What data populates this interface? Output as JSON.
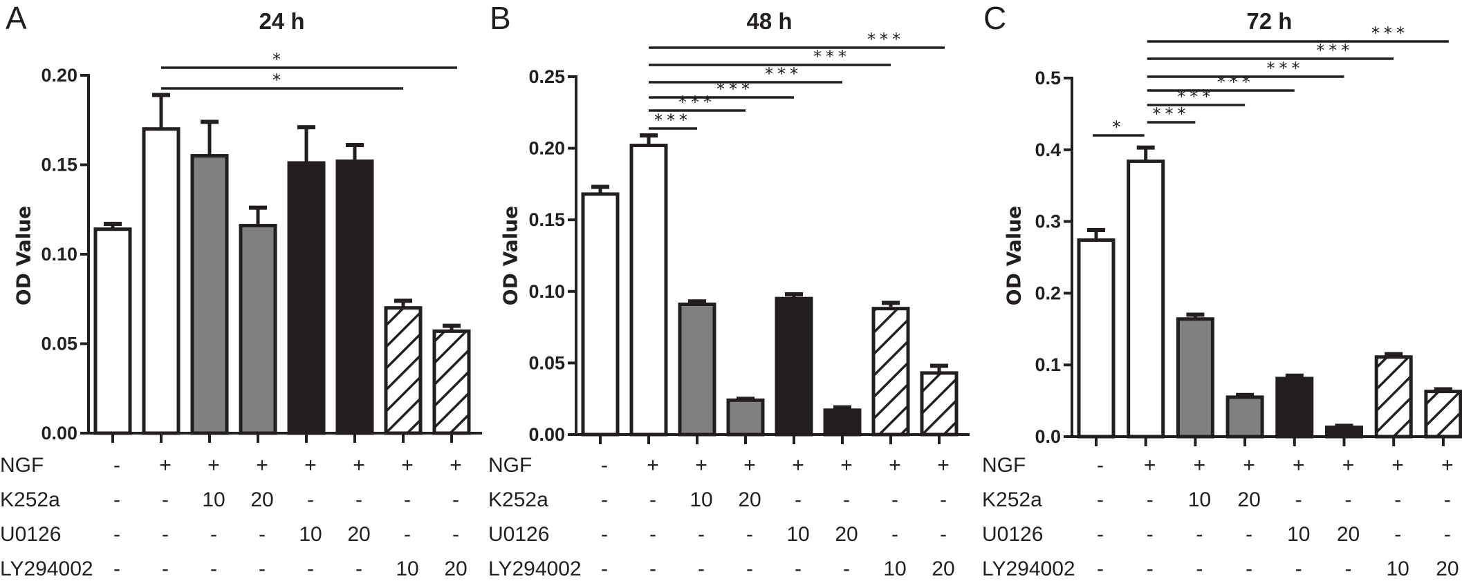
{
  "chart_data": [
    {
      "type": "bar",
      "panel_label": "A",
      "title": "24 h",
      "ylabel": "OD Value",
      "ylim": [
        0,
        0.2
      ],
      "yticks": [
        "0.00",
        "0.05",
        "0.10",
        "0.15",
        "0.20"
      ],
      "ytick_values": [
        0,
        0.05,
        0.1,
        0.15,
        0.2
      ],
      "values": [
        0.114,
        0.17,
        0.155,
        0.116,
        0.151,
        0.152,
        0.07,
        0.057
      ],
      "errors": [
        0.003,
        0.019,
        0.019,
        0.01,
        0.02,
        0.009,
        0.004,
        0.003
      ],
      "significance": [
        {
          "from": 1,
          "to": 6,
          "label": "*"
        },
        {
          "from": 1,
          "to": 7,
          "label": "*"
        }
      ]
    },
    {
      "type": "bar",
      "panel_label": "B",
      "title": "48 h",
      "ylabel": "OD Value",
      "ylim": [
        0,
        0.25
      ],
      "yticks": [
        "0.00",
        "0.05",
        "0.10",
        "0.15",
        "0.20",
        "0.25"
      ],
      "ytick_values": [
        0,
        0.05,
        0.1,
        0.15,
        0.2,
        0.25
      ],
      "values": [
        0.168,
        0.202,
        0.091,
        0.024,
        0.095,
        0.017,
        0.088,
        0.043
      ],
      "errors": [
        0.005,
        0.007,
        0.002,
        0.001,
        0.003,
        0.002,
        0.004,
        0.005
      ],
      "significance": [
        {
          "from": 1,
          "to": 2,
          "label": "***"
        },
        {
          "from": 1,
          "to": 3,
          "label": "***"
        },
        {
          "from": 1,
          "to": 4,
          "label": "***"
        },
        {
          "from": 1,
          "to": 5,
          "label": "***"
        },
        {
          "from": 1,
          "to": 6,
          "label": "***"
        },
        {
          "from": 1,
          "to": 7,
          "label": "***"
        }
      ]
    },
    {
      "type": "bar",
      "panel_label": "C",
      "title": "72 h",
      "ylabel": "OD Value",
      "ylim": [
        0,
        0.5
      ],
      "yticks": [
        "0.0",
        "0.1",
        "0.2",
        "0.3",
        "0.4",
        "0.5"
      ],
      "ytick_values": [
        0,
        0.1,
        0.2,
        0.3,
        0.4,
        0.5
      ],
      "values": [
        0.274,
        0.384,
        0.164,
        0.055,
        0.081,
        0.013,
        0.111,
        0.063
      ],
      "errors": [
        0.014,
        0.019,
        0.006,
        0.003,
        0.004,
        0.002,
        0.004,
        0.003
      ],
      "significance": [
        {
          "from": 0,
          "to": 1,
          "label": "*"
        },
        {
          "from": 1,
          "to": 2,
          "label": "***"
        },
        {
          "from": 1,
          "to": 3,
          "label": "***"
        },
        {
          "from": 1,
          "to": 4,
          "label": "***"
        },
        {
          "from": 1,
          "to": 5,
          "label": "***"
        },
        {
          "from": 1,
          "to": 6,
          "label": "***"
        },
        {
          "from": 1,
          "to": 7,
          "label": "***"
        }
      ]
    }
  ],
  "bar_fills": [
    "white",
    "white",
    "gray",
    "gray",
    "black",
    "black",
    "hatched",
    "hatched"
  ],
  "colors": {
    "gray": "#808080",
    "black": "#231f20",
    "white": "#ffffff",
    "outline": "#231f20"
  },
  "treatments": [
    {
      "name": "NGF",
      "values": [
        "-",
        "+",
        "+",
        "+",
        "+",
        "+",
        "+",
        "+"
      ]
    },
    {
      "name": "K252a",
      "values": [
        "-",
        "-",
        "10",
        "20",
        "-",
        "-",
        "-",
        "-"
      ]
    },
    {
      "name": "U0126",
      "values": [
        "-",
        "-",
        "-",
        "-",
        "10",
        "20",
        "-",
        "-"
      ]
    },
    {
      "name": "LY294002",
      "values": [
        "-",
        "-",
        "-",
        "-",
        "-",
        "-",
        "10",
        "20"
      ]
    }
  ]
}
